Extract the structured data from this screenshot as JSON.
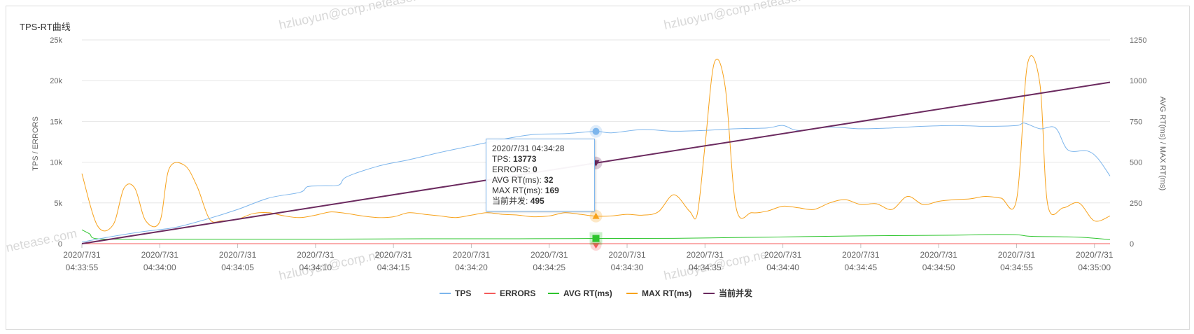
{
  "chart_data": {
    "type": "line",
    "title": "TPS-RT曲线",
    "ylabel_left": "TPS / ERRORS",
    "ylabel_right": "AVG RT(ms) / MAX RT(ms)",
    "y_left_ticks": [
      "0",
      "5k",
      "10k",
      "15k",
      "20k",
      "25k"
    ],
    "y_left_range": [
      0,
      25000
    ],
    "y_right_ticks": [
      "0",
      "250",
      "500",
      "750",
      "1000",
      "1250"
    ],
    "y_right_range": [
      0,
      1250
    ],
    "x_ticks": [
      [
        "2020/7/31",
        "04:33:55"
      ],
      [
        "2020/7/31",
        "04:34:00"
      ],
      [
        "2020/7/31",
        "04:34:05"
      ],
      [
        "2020/7/31",
        "04:34:10"
      ],
      [
        "2020/7/31",
        "04:34:15"
      ],
      [
        "2020/7/31",
        "04:34:20"
      ],
      [
        "2020/7/31",
        "04:34:25"
      ],
      [
        "2020/7/31",
        "04:34:30"
      ],
      [
        "2020/7/31",
        "04:34:35"
      ],
      [
        "2020/7/31",
        "04:34:40"
      ],
      [
        "2020/7/31",
        "04:34:45"
      ],
      [
        "2020/7/31",
        "04:34:50"
      ],
      [
        "2020/7/31",
        "04:34:55"
      ],
      [
        "2020/7/31",
        "04:35:00"
      ]
    ],
    "x_range_seconds": [
      0,
      66
    ],
    "grid": true,
    "legend_position": "bottom-center",
    "series": [
      {
        "name": "TPS",
        "axis": "left",
        "color": "#7cb5ec",
        "points": [
          [
            0,
            200
          ],
          [
            2,
            900
          ],
          [
            4,
            1500
          ],
          [
            6,
            2000
          ],
          [
            8,
            3000
          ],
          [
            10,
            4200
          ],
          [
            12,
            5600
          ],
          [
            14,
            6300
          ],
          [
            14.5,
            7000
          ],
          [
            15.5,
            7100
          ],
          [
            16.5,
            7200
          ],
          [
            17,
            8200
          ],
          [
            19,
            9500
          ],
          [
            21,
            10300
          ],
          [
            23,
            11200
          ],
          [
            25,
            12000
          ],
          [
            27,
            12800
          ],
          [
            29,
            13400
          ],
          [
            31,
            13500
          ],
          [
            33,
            13773
          ],
          [
            34,
            13600
          ],
          [
            36,
            14000
          ],
          [
            38,
            13800
          ],
          [
            40,
            13900
          ],
          [
            42,
            14100
          ],
          [
            44,
            14200
          ],
          [
            45,
            14500
          ],
          [
            46,
            13900
          ],
          [
            48,
            14300
          ],
          [
            50,
            14100
          ],
          [
            52,
            14200
          ],
          [
            54,
            14400
          ],
          [
            56,
            14500
          ],
          [
            58,
            14400
          ],
          [
            60,
            14500
          ],
          [
            60.5,
            14800
          ],
          [
            61.5,
            14100
          ],
          [
            62.5,
            14200
          ],
          [
            63.3,
            11500
          ],
          [
            64.5,
            11400
          ],
          [
            65.2,
            10500
          ],
          [
            66,
            8300
          ]
        ]
      },
      {
        "name": "ERRORS",
        "axis": "left",
        "color": "#f45b5b",
        "points": [
          [
            0,
            0
          ],
          [
            66,
            0
          ]
        ]
      },
      {
        "name": "AVG RT(ms)",
        "axis": "right",
        "color": "#2ec52e",
        "points": [
          [
            0,
            85
          ],
          [
            0.5,
            60
          ],
          [
            1,
            30
          ],
          [
            4,
            28
          ],
          [
            10,
            28
          ],
          [
            16,
            28
          ],
          [
            22,
            30
          ],
          [
            28,
            30
          ],
          [
            33,
            32
          ],
          [
            38,
            33
          ],
          [
            44,
            40
          ],
          [
            50,
            48
          ],
          [
            56,
            52
          ],
          [
            58,
            56
          ],
          [
            60,
            55
          ],
          [
            61,
            45
          ],
          [
            64,
            40
          ],
          [
            66,
            25
          ]
        ]
      },
      {
        "name": "MAX RT(ms)",
        "axis": "right",
        "color": "#f7a21b",
        "points": [
          [
            0,
            430
          ],
          [
            1,
            110
          ],
          [
            2,
            115
          ],
          [
            2.7,
            340
          ],
          [
            3.4,
            340
          ],
          [
            4.1,
            140
          ],
          [
            5,
            135
          ],
          [
            5.6,
            460
          ],
          [
            6.6,
            480
          ],
          [
            7.4,
            350
          ],
          [
            8.2,
            150
          ],
          [
            9,
            140
          ],
          [
            10,
            150
          ],
          [
            11,
            185
          ],
          [
            12,
            190
          ],
          [
            13,
            170
          ],
          [
            14,
            160
          ],
          [
            15,
            175
          ],
          [
            16,
            195
          ],
          [
            17,
            185
          ],
          [
            18,
            170
          ],
          [
            19,
            160
          ],
          [
            20,
            165
          ],
          [
            21,
            190
          ],
          [
            22,
            180
          ],
          [
            23,
            170
          ],
          [
            24,
            160
          ],
          [
            25,
            175
          ],
          [
            26,
            190
          ],
          [
            27,
            180
          ],
          [
            28,
            175
          ],
          [
            29,
            165
          ],
          [
            30,
            170
          ],
          [
            31,
            190
          ],
          [
            32,
            180
          ],
          [
            33,
            169
          ],
          [
            34,
            170
          ],
          [
            35,
            180
          ],
          [
            36,
            175
          ],
          [
            37,
            195
          ],
          [
            38,
            300
          ],
          [
            39,
            200
          ],
          [
            39.5,
            180
          ],
          [
            40,
            600
          ],
          [
            40.6,
            1110
          ],
          [
            41.3,
            960
          ],
          [
            42,
            220
          ],
          [
            43,
            190
          ],
          [
            44,
            200
          ],
          [
            45,
            230
          ],
          [
            46,
            220
          ],
          [
            47,
            210
          ],
          [
            48,
            250
          ],
          [
            49,
            270
          ],
          [
            50,
            240
          ],
          [
            51,
            245
          ],
          [
            52,
            210
          ],
          [
            53,
            290
          ],
          [
            54,
            240
          ],
          [
            55,
            260
          ],
          [
            56,
            270
          ],
          [
            57,
            275
          ],
          [
            58,
            290
          ],
          [
            59,
            280
          ],
          [
            60,
            270
          ],
          [
            60.7,
            1100
          ],
          [
            61.5,
            980
          ],
          [
            62,
            240
          ],
          [
            63,
            220
          ],
          [
            64,
            250
          ],
          [
            65,
            140
          ],
          [
            66,
            170
          ]
        ]
      },
      {
        "name": "当前并发",
        "axis": "right",
        "color": "#6b2a5f",
        "points": [
          [
            0,
            0
          ],
          [
            66,
            990
          ]
        ]
      }
    ],
    "watermarks": [
      "hzluoyun@corp.netease.com",
      "hzluoyun@corp.netease.com",
      "netease.com",
      "hzluoyun@corp.ne",
      "hzluoyun@corp.ne"
    ]
  },
  "tooltip": {
    "time": "2020/7/31 04:34:28",
    "rows": [
      {
        "label": "TPS:",
        "value": "13773"
      },
      {
        "label": "ERRORS:",
        "value": "0"
      },
      {
        "label": "AVG RT(ms):",
        "value": "32"
      },
      {
        "label": "MAX RT(ms):",
        "value": "169"
      },
      {
        "label": "当前并发:",
        "value": "495"
      }
    ]
  }
}
